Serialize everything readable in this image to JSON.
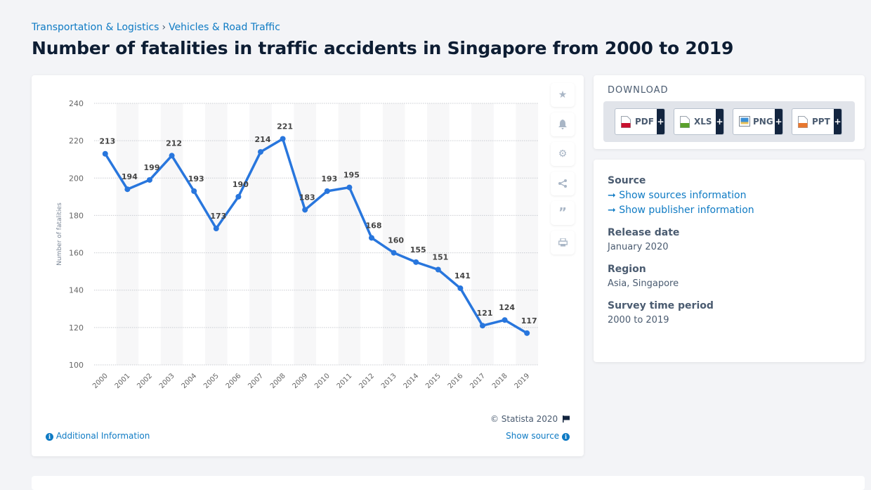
{
  "breadcrumb": {
    "items": [
      "Transportation & Logistics",
      "Vehicles & Road Traffic"
    ],
    "separator": "›"
  },
  "page_title": "Number of fatalities in traffic accidents in Singapore from 2000 to 2019",
  "chart_tools": [
    {
      "icon": "star-icon",
      "label": "Favorite"
    },
    {
      "icon": "bell-icon",
      "label": "Notification"
    },
    {
      "icon": "gear-icon",
      "label": "Settings"
    },
    {
      "icon": "share-icon",
      "label": "Share"
    },
    {
      "icon": "quote-icon",
      "label": "Cite"
    },
    {
      "icon": "print-icon",
      "label": "Print"
    }
  ],
  "chart_footer": {
    "copyright": "© Statista 2020",
    "additional_info": "Additional Information",
    "show_source": "Show source"
  },
  "download": {
    "title": "DOWNLOAD",
    "buttons": [
      {
        "label": "PDF",
        "color": "#c8102e"
      },
      {
        "label": "XLS",
        "color": "#5aa02c"
      },
      {
        "label": "PNG",
        "color": "#3a8fd6"
      },
      {
        "label": "PPT",
        "color": "#e8772e"
      }
    ],
    "plus": "+"
  },
  "meta": {
    "source_heading": "Source",
    "source_links": [
      "Show sources information",
      "Show publisher information"
    ],
    "release_heading": "Release date",
    "release_value": "January 2020",
    "region_heading": "Region",
    "region_value": "Asia, Singapore",
    "period_heading": "Survey time period",
    "period_value": "2000 to 2019"
  },
  "colors": {
    "accent": "#2876dd",
    "link": "#0f7bc4",
    "title": "#0d1d33"
  },
  "chart_data": {
    "type": "line",
    "title": "Number of fatalities in traffic accidents in Singapore from 2000 to 2019",
    "xlabel": "",
    "ylabel": "Number of fatalities",
    "categories": [
      "2000",
      "2001",
      "2002",
      "2003",
      "2004",
      "2005",
      "2006",
      "2007",
      "2008",
      "2009",
      "2010",
      "2011",
      "2012",
      "2013",
      "2014",
      "2015",
      "2016",
      "2017",
      "2018",
      "2019"
    ],
    "series": [
      {
        "name": "Fatalities",
        "values": [
          213,
          194,
          199,
          212,
          193,
          173,
          190,
          214,
          221,
          183,
          193,
          195,
          168,
          160,
          155,
          151,
          141,
          121,
          124,
          117
        ]
      }
    ],
    "ylim": [
      100,
      240
    ],
    "yticks": [
      100,
      120,
      140,
      160,
      180,
      200,
      220,
      240
    ],
    "grid": true,
    "data_labels": true,
    "legend": "none"
  }
}
